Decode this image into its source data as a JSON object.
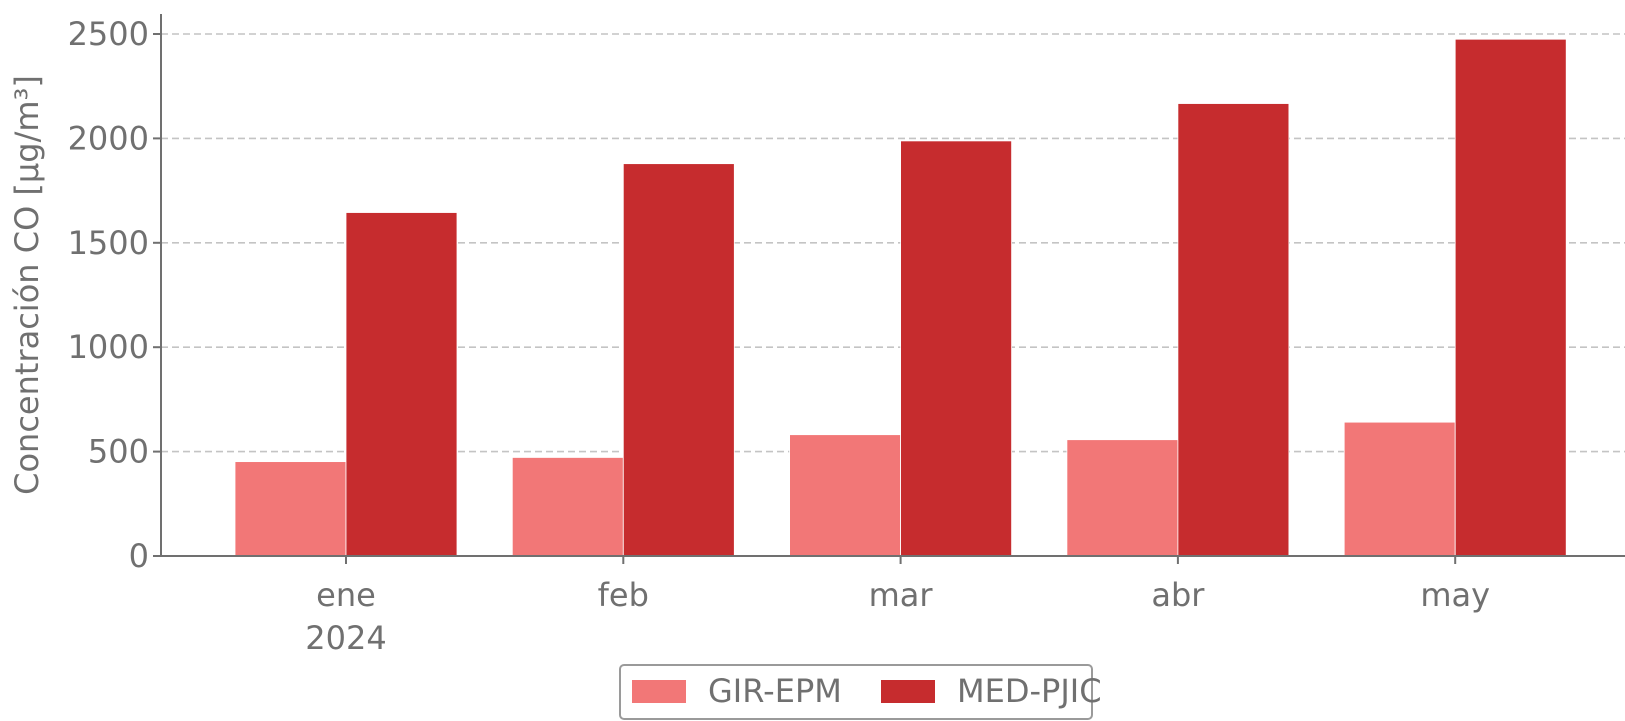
{
  "chart_data": {
    "type": "bar",
    "ylabel": "Concentración CO [μg/m³]",
    "categories": [
      "ene",
      "feb",
      "mar",
      "abr",
      "may"
    ],
    "year_label": "2024",
    "series": [
      {
        "name": "GIR-EPM",
        "color": "#f27777",
        "values": [
          452,
          472,
          581,
          557,
          641
        ]
      },
      {
        "name": "MED-PJIC",
        "color": "#c62c2e",
        "values": [
          1645,
          1879,
          1988,
          2167,
          2475
        ]
      }
    ],
    "ylim": [
      0,
      2500
    ],
    "yticks": [
      0,
      500,
      1000,
      1500,
      2000,
      2500
    ],
    "grid": true,
    "legend": "bottom"
  }
}
